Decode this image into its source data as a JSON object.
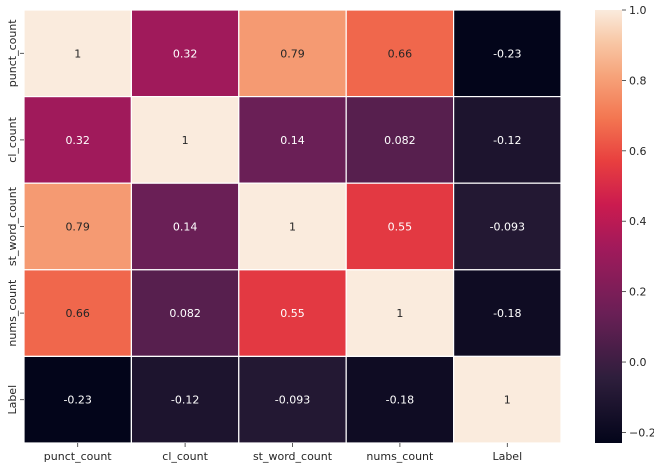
{
  "chart_data": {
    "type": "heatmap",
    "title": "",
    "xlabel": "",
    "ylabel": "",
    "x_categories": [
      "punct_count",
      "cl_count",
      "st_word_count",
      "nums_count",
      "Label"
    ],
    "y_categories": [
      "punct_count",
      "cl_count",
      "st_word_count",
      "nums_count",
      "Label"
    ],
    "values": [
      [
        1,
        0.32,
        0.79,
        0.66,
        -0.23
      ],
      [
        0.32,
        1,
        0.14,
        0.082,
        -0.12
      ],
      [
        0.79,
        0.14,
        1,
        0.55,
        -0.093
      ],
      [
        0.66,
        0.082,
        0.55,
        1,
        -0.18
      ],
      [
        -0.23,
        -0.12,
        -0.093,
        -0.18,
        1
      ]
    ],
    "annotations": [
      [
        "1",
        "0.32",
        "0.79",
        "0.66",
        "-0.23"
      ],
      [
        "0.32",
        "1",
        "0.14",
        "0.082",
        "-0.12"
      ],
      [
        "0.79",
        "0.14",
        "1",
        "0.55",
        "-0.093"
      ],
      [
        "0.66",
        "0.082",
        "0.55",
        "1",
        "-0.18"
      ],
      [
        "-0.23",
        "-0.12",
        "-0.093",
        "-0.18",
        "1"
      ]
    ],
    "colormap": "rocket",
    "colorbar": {
      "range": [
        -0.23,
        1.0
      ],
      "ticks": [
        -0.2,
        0.0,
        0.2,
        0.4,
        0.6,
        0.8,
        1.0
      ],
      "tick_labels": [
        "−0.2",
        "0.0",
        "0.2",
        "0.4",
        "0.6",
        "0.8",
        "1.0"
      ]
    },
    "cell_border_color": "#ffffff",
    "legend": "colorbar right"
  }
}
